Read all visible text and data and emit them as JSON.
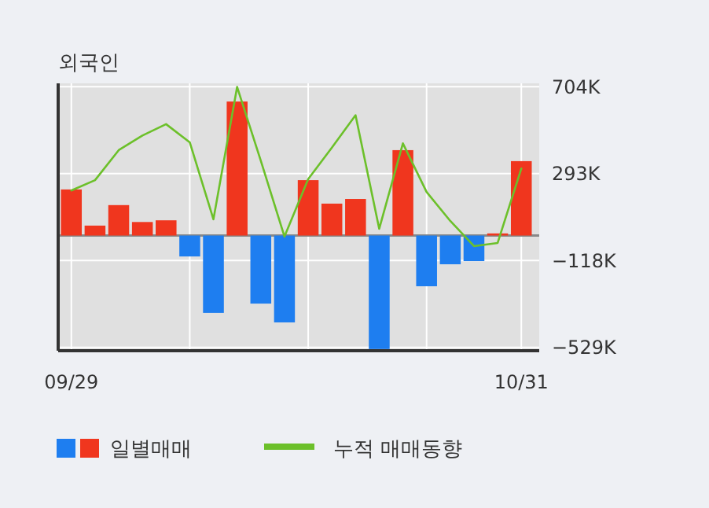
{
  "chart_data": {
    "type": "bar",
    "title": "외국인",
    "categories": [
      "09/29",
      null,
      null,
      null,
      null,
      null,
      null,
      null,
      null,
      null,
      null,
      null,
      null,
      null,
      null,
      null,
      null,
      null,
      null,
      "10/31"
    ],
    "ylim": [
      -545,
      720
    ],
    "yticks": [
      {
        "value": 704,
        "label": "704K"
      },
      {
        "value": 293,
        "label": "293K"
      },
      {
        "value": -118,
        "label": "−118K"
      },
      {
        "value": -529,
        "label": "−529K"
      }
    ],
    "grid": true,
    "legend": "bottom",
    "series": [
      {
        "name": "일별매매",
        "values": [
          218,
          47,
          144,
          64,
          72,
          -99,
          -366,
          634,
          -322,
          -411,
          262,
          151,
          173,
          -537,
          404,
          -240,
          -136,
          -121,
          10,
          352
        ],
        "colors": [
          "#f0361e",
          "#f0361e",
          "#f0361e",
          "#f0361e",
          "#f0361e",
          "#1e7ef0",
          "#1e7ef0",
          "#f0361e",
          "#1e7ef0",
          "#1e7ef0",
          "#f0361e",
          "#f0361e",
          "#f0361e",
          "#1e7ef0",
          "#f0361e",
          "#1e7ef0",
          "#1e7ef0",
          "#1e7ef0",
          "#f0361e",
          "#f0361e"
        ]
      },
      {
        "name": "누적 매매동향",
        "type": "line",
        "color": "#6cc02a",
        "values": [
          213,
          262,
          404,
          473,
          527,
          441,
          77,
          703,
          354,
          -5,
          267,
          416,
          569,
          32,
          436,
          206,
          69,
          -50,
          -35,
          317
        ]
      }
    ]
  }
}
